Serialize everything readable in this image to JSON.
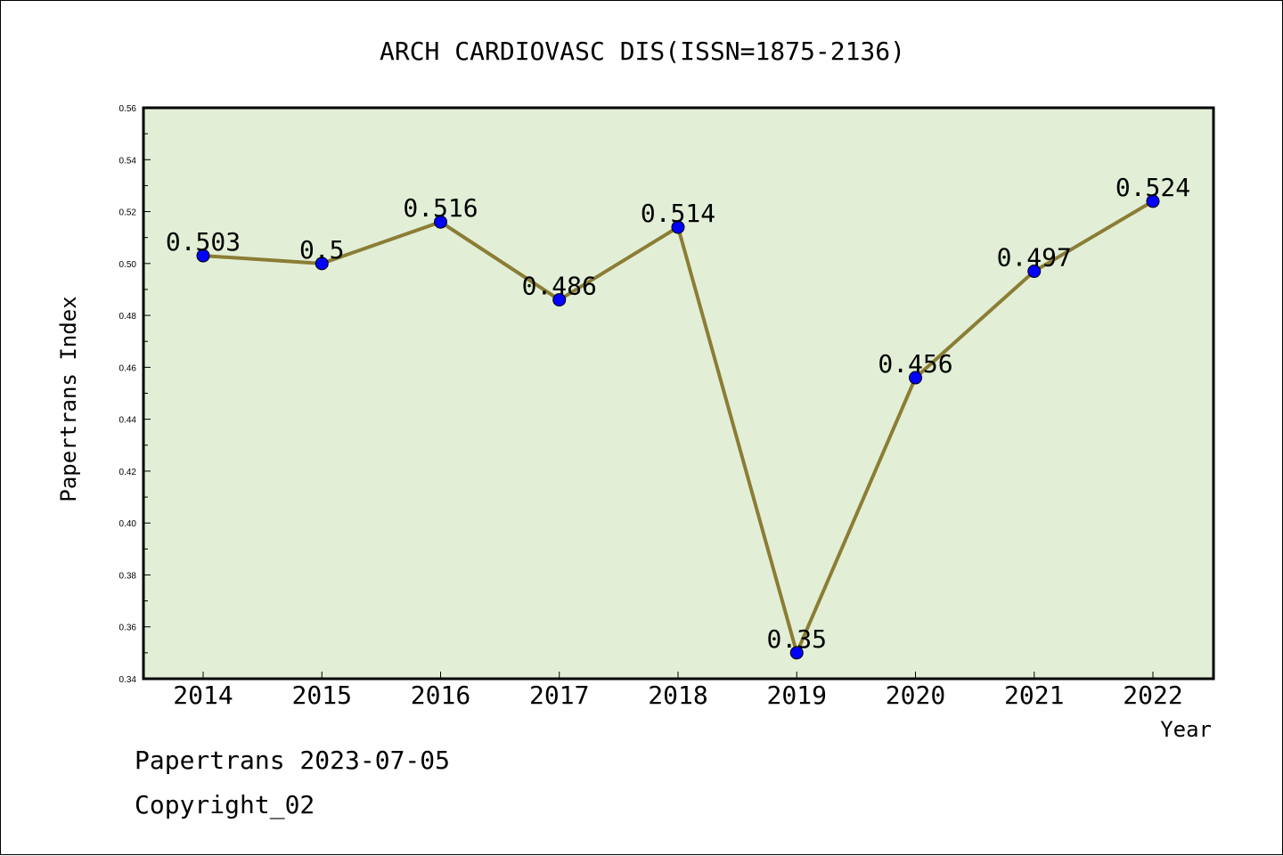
{
  "chart_data": {
    "type": "line",
    "title": "ARCH CARDIOVASC DIS(ISSN=1875-2136)",
    "xlabel": "Year",
    "ylabel": "Papertrans Index",
    "categories": [
      "2014",
      "2015",
      "2016",
      "2017",
      "2018",
      "2019",
      "2020",
      "2021",
      "2022"
    ],
    "series": [
      {
        "values": [
          0.503,
          0.5,
          0.516,
          0.486,
          0.514,
          0.35,
          0.456,
          0.497,
          0.524
        ],
        "labels": [
          "0.503",
          "0.5",
          "0.516",
          "0.486",
          "0.514",
          "0.35",
          "0.456",
          "0.497",
          "0.524"
        ]
      }
    ],
    "ylim": [
      0.34,
      0.56
    ],
    "yticks": [
      "0.34",
      "0.36",
      "0.38",
      "0.40",
      "0.42",
      "0.44",
      "0.46",
      "0.48",
      "0.50",
      "0.52",
      "0.54",
      "0.56"
    ],
    "grid": false,
    "colors": {
      "plot_background": "#e2efd6",
      "line": "#8b7d35",
      "marker": "#0000ff"
    }
  },
  "footer": {
    "line1": "Papertrans 2023-07-05",
    "line2": "Copyright_02"
  }
}
